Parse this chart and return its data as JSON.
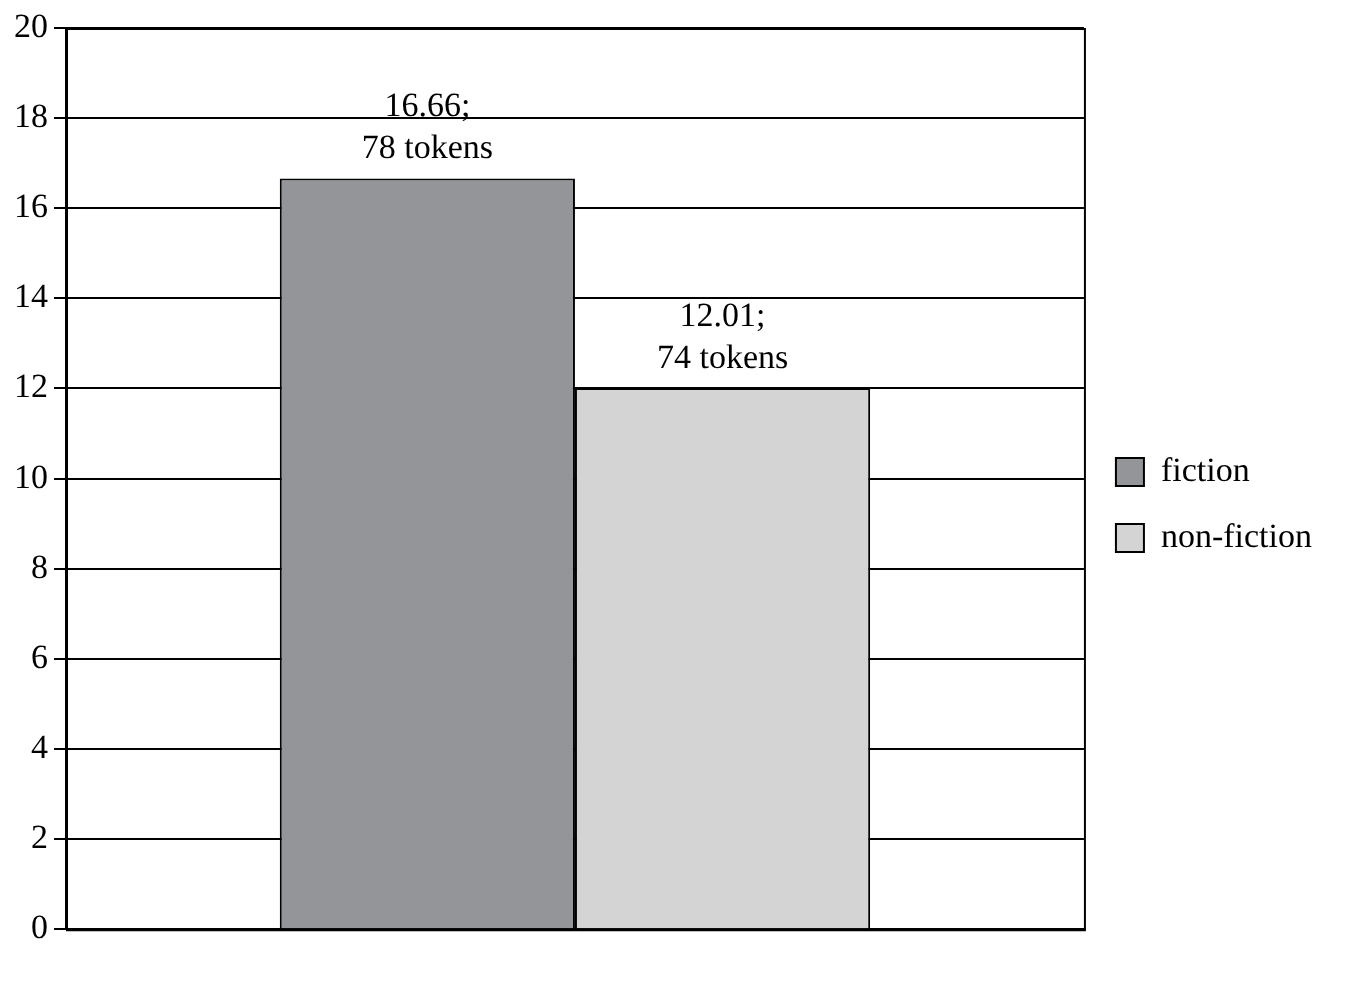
{
  "chart_data": {
    "type": "bar",
    "categories": [
      null
    ],
    "series": [
      {
        "name": "fiction",
        "color": "#939598",
        "values": [
          16.66
        ],
        "value_labels": [
          "16.66;\n78 tokens"
        ]
      },
      {
        "name": "non-fiction",
        "color": "#d4d4d5",
        "values": [
          12.01
        ],
        "value_labels": [
          "12.01;\n74 tokens"
        ]
      }
    ],
    "ylim": [
      0,
      20
    ],
    "yticks": [
      0,
      2,
      4,
      6,
      8,
      10,
      12,
      14,
      16,
      18,
      20
    ],
    "grid": "y",
    "legend": "right"
  }
}
